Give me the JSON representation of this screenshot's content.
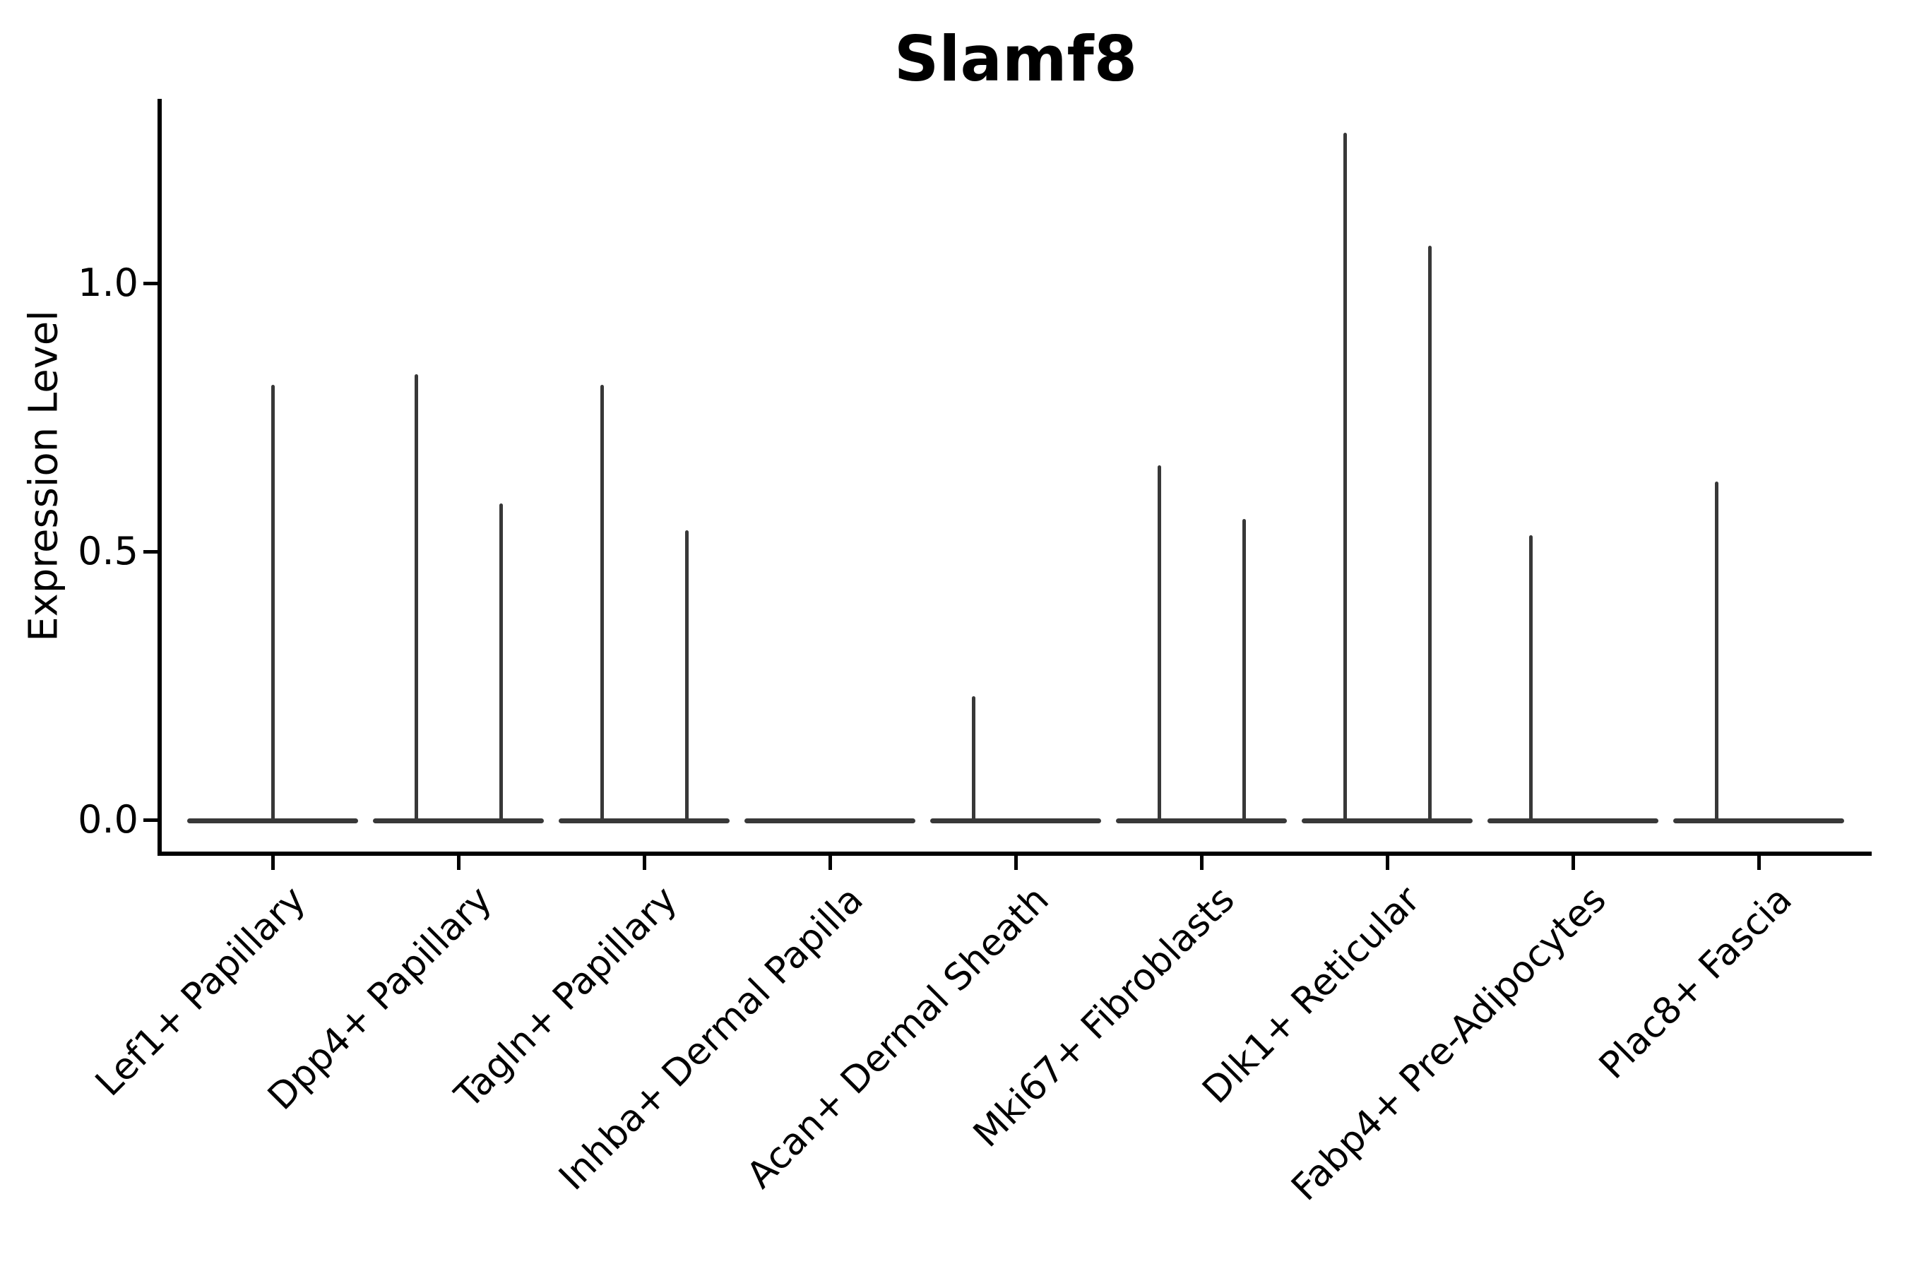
{
  "title": "Slamf8",
  "colors": {
    "background": "#ffffff",
    "axis": "#000000",
    "text": "#000000",
    "violin": "#383838"
  },
  "chart_data": {
    "type": "violin",
    "title": "Slamf8",
    "xlabel": "",
    "ylabel": "Expression Level",
    "ylim": [
      -0.06,
      1.34
    ],
    "yticks": [
      0.0,
      0.5,
      1.0
    ],
    "ytick_labels": [
      "0.0",
      "0.5",
      "1.0"
    ],
    "grid": false,
    "legend": "none",
    "baseline_value": 0.0,
    "categories": [
      "Lef1+ Papillary",
      "Dpp4+ Papillary",
      "Tagln+ Papillary",
      "Inhba+ Dermal Papilla",
      "Acan+ Dermal Sheath",
      "Mki67+ Fibroblasts",
      "Dlk1+ Reticular",
      "Fabp4+ Pre-Adipocytes",
      "Plac8+ Fascia"
    ],
    "violins": [
      {
        "category": "Lef1+ Papillary",
        "spikes": [
          {
            "position": "center",
            "max": 0.81
          }
        ]
      },
      {
        "category": "Dpp4+ Papillary",
        "spikes": [
          {
            "position": "left",
            "max": 0.83
          },
          {
            "position": "right",
            "max": 0.59
          }
        ]
      },
      {
        "category": "Tagln+ Papillary",
        "spikes": [
          {
            "position": "left",
            "max": 0.81
          },
          {
            "position": "right",
            "max": 0.54
          }
        ]
      },
      {
        "category": "Inhba+ Dermal Papilla",
        "spikes": []
      },
      {
        "category": "Acan+ Dermal Sheath",
        "spikes": [
          {
            "position": "left",
            "max": 0.23
          }
        ]
      },
      {
        "category": "Mki67+ Fibroblasts",
        "spikes": [
          {
            "position": "left",
            "max": 0.66
          },
          {
            "position": "right",
            "max": 0.56
          }
        ]
      },
      {
        "category": "Dlk1+ Reticular",
        "spikes": [
          {
            "position": "left",
            "max": 1.28
          },
          {
            "position": "right",
            "max": 1.07
          }
        ]
      },
      {
        "category": "Fabp4+ Pre-Adipocytes",
        "spikes": [
          {
            "position": "left",
            "max": 0.53
          }
        ]
      },
      {
        "category": "Plac8+ Fascia",
        "spikes": [
          {
            "position": "left",
            "max": 0.63
          }
        ]
      }
    ]
  }
}
